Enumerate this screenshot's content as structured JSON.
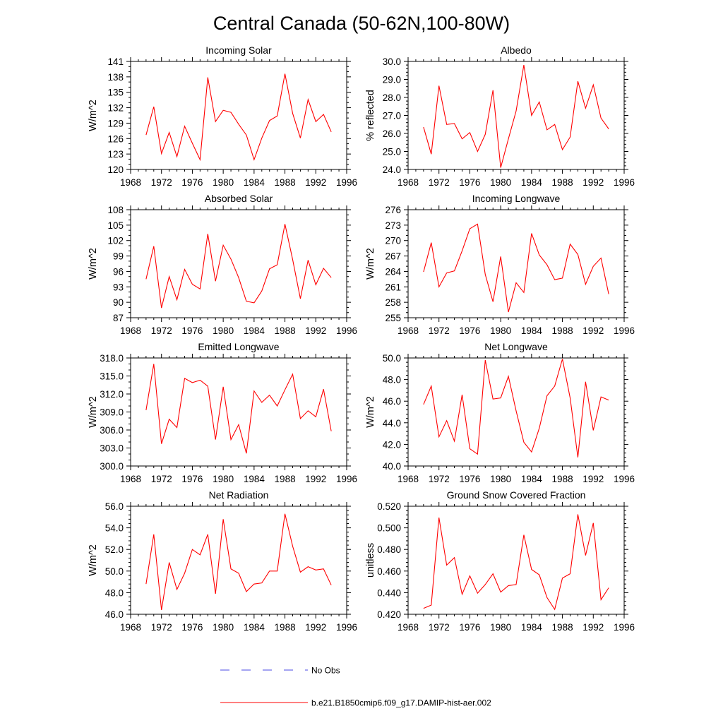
{
  "figure": {
    "title": "Central Canada (50-62N,100-80W)",
    "line_color": "#ff0000",
    "obs_color": "#4a4ae6"
  },
  "legend": {
    "obs_label": "No Obs",
    "model_label": "b.e21.B1850cmip6.f09_g17.DAMIP-hist-aer.002"
  },
  "chart_data": [
    {
      "type": "line",
      "title": "Incoming Solar",
      "ylabel": "W/m^2",
      "xlim": [
        1968,
        1996
      ],
      "xticks": [
        1968,
        1972,
        1976,
        1980,
        1984,
        1988,
        1992,
        1996
      ],
      "ylim": [
        120,
        141
      ],
      "yticks": [
        "120",
        "123",
        "126",
        "129",
        "132",
        "135",
        "138",
        "141"
      ],
      "ytick_values": [
        120,
        123,
        126,
        129,
        132,
        135,
        138,
        141
      ],
      "x": [
        1970,
        1971,
        1972,
        1973,
        1974,
        1975,
        1976,
        1977,
        1978,
        1979,
        1980,
        1981,
        1982,
        1983,
        1984,
        1985,
        1986,
        1987,
        1988,
        1989,
        1990,
        1991,
        1992,
        1993,
        1994
      ],
      "values": [
        126.7,
        132.2,
        123.1,
        127.2,
        122.5,
        128.4,
        125.1,
        121.9,
        137.9,
        129.3,
        131.5,
        131.1,
        128.8,
        126.7,
        121.9,
        126.1,
        129.5,
        130.4,
        138.6,
        130.9,
        126.1,
        133.6,
        129.3,
        130.7,
        127.3
      ]
    },
    {
      "type": "line",
      "title": "Albedo",
      "ylabel": "% reflected",
      "xlim": [
        1968,
        1996
      ],
      "xticks": [
        1968,
        1972,
        1976,
        1980,
        1984,
        1988,
        1992,
        1996
      ],
      "ylim": [
        24,
        30
      ],
      "yticks": [
        "24.0",
        "25.0",
        "26.0",
        "27.0",
        "28.0",
        "29.0",
        "30.0"
      ],
      "ytick_values": [
        24,
        25,
        26,
        27,
        28,
        29,
        30
      ],
      "x": [
        1970,
        1971,
        1972,
        1973,
        1974,
        1975,
        1976,
        1977,
        1978,
        1979,
        1980,
        1981,
        1982,
        1983,
        1984,
        1985,
        1986,
        1987,
        1988,
        1989,
        1990,
        1991,
        1992,
        1993,
        1994
      ],
      "values": [
        26.35,
        24.85,
        28.65,
        26.5,
        26.55,
        25.7,
        26.05,
        25.0,
        25.95,
        28.4,
        24.1,
        25.7,
        27.25,
        29.8,
        27.0,
        27.75,
        26.2,
        26.5,
        25.1,
        25.8,
        28.9,
        27.4,
        28.7,
        26.85,
        26.25
      ]
    },
    {
      "type": "line",
      "title": "Absorbed Solar",
      "ylabel": "W/m^2",
      "xlim": [
        1968,
        1996
      ],
      "xticks": [
        1968,
        1972,
        1976,
        1980,
        1984,
        1988,
        1992,
        1996
      ],
      "ylim": [
        87,
        108
      ],
      "yticks": [
        "87",
        "90",
        "93",
        "96",
        "99",
        "102",
        "105",
        "108"
      ],
      "ytick_values": [
        87,
        90,
        93,
        96,
        99,
        102,
        105,
        108
      ],
      "x": [
        1970,
        1971,
        1972,
        1973,
        1974,
        1975,
        1976,
        1977,
        1978,
        1979,
        1980,
        1981,
        1982,
        1983,
        1984,
        1985,
        1986,
        1987,
        1988,
        1989,
        1990,
        1991,
        1992,
        1993,
        1994
      ],
      "values": [
        94.5,
        100.9,
        88.9,
        95.0,
        90.5,
        96.4,
        93.5,
        92.6,
        103.3,
        94.1,
        101.1,
        98.4,
        94.8,
        90.2,
        89.9,
        92.2,
        96.5,
        97.3,
        105.2,
        98.3,
        90.7,
        98.2,
        93.4,
        96.6,
        94.8
      ]
    },
    {
      "type": "line",
      "title": "Incoming Longwave",
      "ylabel": "W/m^2",
      "xlim": [
        1968,
        1996
      ],
      "xticks": [
        1968,
        1972,
        1976,
        1980,
        1984,
        1988,
        1992,
        1996
      ],
      "ylim": [
        255,
        276
      ],
      "yticks": [
        "255",
        "258",
        "261",
        "264",
        "267",
        "270",
        "273",
        "276"
      ],
      "ytick_values": [
        255,
        258,
        261,
        264,
        267,
        270,
        273,
        276
      ],
      "x": [
        1970,
        1971,
        1972,
        1973,
        1974,
        1975,
        1976,
        1977,
        1978,
        1979,
        1980,
        1981,
        1982,
        1983,
        1984,
        1985,
        1986,
        1987,
        1988,
        1989,
        1990,
        1991,
        1992,
        1993,
        1994
      ],
      "values": [
        263.9,
        269.6,
        261.0,
        263.7,
        264.1,
        268.0,
        272.3,
        273.2,
        263.4,
        258.1,
        266.9,
        256.1,
        261.8,
        259.9,
        271.4,
        267.2,
        265.3,
        262.4,
        262.7,
        269.3,
        267.3,
        261.5,
        265.0,
        266.6,
        259.6
      ]
    },
    {
      "type": "line",
      "title": "Emitted Longwave",
      "ylabel": "W/m^2",
      "xlim": [
        1968,
        1996
      ],
      "xticks": [
        1968,
        1972,
        1976,
        1980,
        1984,
        1988,
        1992,
        1996
      ],
      "ylim": [
        300,
        318
      ],
      "yticks": [
        "300.0",
        "303.0",
        "306.0",
        "309.0",
        "312.0",
        "315.0",
        "318.0"
      ],
      "ytick_values": [
        300,
        303,
        306,
        309,
        312,
        315,
        318
      ],
      "x": [
        1970,
        1971,
        1972,
        1973,
        1974,
        1975,
        1976,
        1977,
        1978,
        1979,
        1980,
        1981,
        1982,
        1983,
        1984,
        1985,
        1986,
        1987,
        1988,
        1989,
        1990,
        1991,
        1992,
        1993,
        1994
      ],
      "values": [
        309.3,
        317.0,
        303.7,
        307.8,
        306.4,
        314.6,
        313.9,
        314.3,
        313.3,
        304.4,
        313.2,
        304.4,
        306.9,
        302.1,
        312.5,
        310.6,
        311.8,
        310.0,
        312.7,
        315.3,
        307.9,
        309.2,
        308.2,
        312.8,
        305.8
      ]
    },
    {
      "type": "line",
      "title": "Net Longwave",
      "ylabel": "W/m^2",
      "xlim": [
        1968,
        1996
      ],
      "xticks": [
        1968,
        1972,
        1976,
        1980,
        1984,
        1988,
        1992,
        1996
      ],
      "ylim": [
        40,
        50
      ],
      "yticks": [
        "40.0",
        "42.0",
        "44.0",
        "46.0",
        "48.0",
        "50.0"
      ],
      "ytick_values": [
        40,
        42,
        44,
        46,
        48,
        50
      ],
      "x": [
        1970,
        1971,
        1972,
        1973,
        1974,
        1975,
        1976,
        1977,
        1978,
        1979,
        1980,
        1981,
        1982,
        1983,
        1984,
        1985,
        1986,
        1987,
        1988,
        1989,
        1990,
        1991,
        1992,
        1993,
        1994
      ],
      "values": [
        45.7,
        47.4,
        42.7,
        44.2,
        42.3,
        46.6,
        41.6,
        41.1,
        49.8,
        46.2,
        46.3,
        48.3,
        45.1,
        42.2,
        41.3,
        43.5,
        46.5,
        47.4,
        49.9,
        46.3,
        40.8,
        47.8,
        43.3,
        46.4,
        46.1
      ]
    },
    {
      "type": "line",
      "title": "Net Radiation",
      "ylabel": "W/m^2",
      "xlim": [
        1968,
        1996
      ],
      "xticks": [
        1968,
        1972,
        1976,
        1980,
        1984,
        1988,
        1992,
        1996
      ],
      "ylim": [
        46,
        56
      ],
      "yticks": [
        "46.0",
        "48.0",
        "50.0",
        "52.0",
        "54.0",
        "56.0"
      ],
      "ytick_values": [
        46,
        48,
        50,
        52,
        54,
        56
      ],
      "x": [
        1970,
        1971,
        1972,
        1973,
        1974,
        1975,
        1976,
        1977,
        1978,
        1979,
        1980,
        1981,
        1982,
        1983,
        1984,
        1985,
        1986,
        1987,
        1988,
        1989,
        1990,
        1991,
        1992,
        1993,
        1994
      ],
      "values": [
        48.8,
        53.4,
        46.4,
        50.8,
        48.3,
        49.8,
        52.0,
        51.5,
        53.4,
        47.9,
        54.8,
        50.2,
        49.8,
        48.1,
        48.8,
        48.9,
        50.0,
        50.0,
        55.3,
        52.3,
        49.9,
        50.4,
        50.1,
        50.2,
        48.7
      ]
    },
    {
      "type": "line",
      "title": "Ground Snow Covered Fraction",
      "ylabel": "unitless",
      "xlim": [
        1968,
        1996
      ],
      "xticks": [
        1968,
        1972,
        1976,
        1980,
        1984,
        1988,
        1992,
        1996
      ],
      "ylim": [
        0.42,
        0.52
      ],
      "yticks": [
        "0.420",
        "0.440",
        "0.460",
        "0.480",
        "0.500",
        "0.520"
      ],
      "ytick_values": [
        0.42,
        0.44,
        0.46,
        0.48,
        0.5,
        0.52
      ],
      "x": [
        1970,
        1971,
        1972,
        1973,
        1974,
        1975,
        1976,
        1977,
        1978,
        1979,
        1980,
        1981,
        1982,
        1983,
        1984,
        1985,
        1986,
        1987,
        1988,
        1989,
        1990,
        1991,
        1992,
        1993,
        1994
      ],
      "values": [
        0.4255,
        0.4285,
        0.5095,
        0.4655,
        0.4725,
        0.4385,
        0.4555,
        0.4395,
        0.4475,
        0.4575,
        0.4405,
        0.4465,
        0.4475,
        0.4935,
        0.4615,
        0.4565,
        0.4355,
        0.4245,
        0.4535,
        0.4575,
        0.5125,
        0.4745,
        0.5045,
        0.4335,
        0.4445
      ]
    }
  ]
}
